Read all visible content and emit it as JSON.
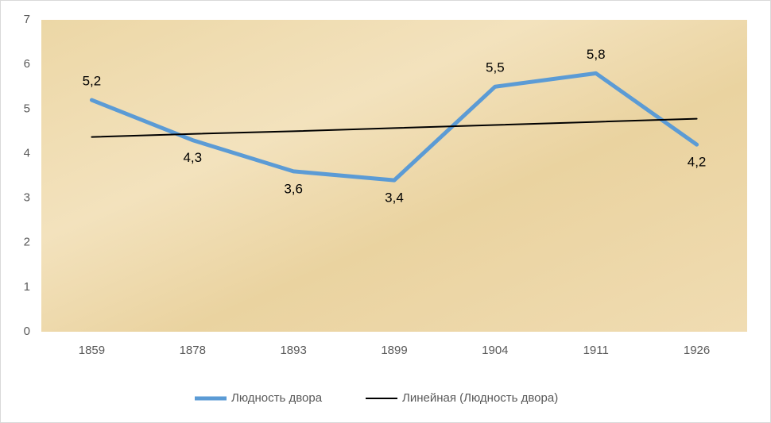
{
  "chart_data": {
    "type": "line",
    "categories": [
      "1859",
      "1878",
      "1893",
      "1899",
      "1904",
      "1911",
      "1926"
    ],
    "series": [
      {
        "name": "Людность двора",
        "color": "#5b9bd5",
        "values": [
          5.2,
          4.3,
          3.6,
          3.4,
          5.5,
          5.8,
          4.2
        ],
        "value_labels": [
          "5,2",
          "4,3",
          "3,6",
          "3,4",
          "5,5",
          "5,8",
          "4,2"
        ]
      },
      {
        "name": "Линейная (Людность двора)",
        "color": "#000000",
        "values": [
          4.37,
          4.44,
          4.5,
          4.57,
          4.64,
          4.71,
          4.78
        ]
      }
    ],
    "ylim": [
      0,
      7
    ],
    "yticks": [
      0,
      1,
      2,
      3,
      4,
      5,
      6,
      7
    ],
    "grid": false,
    "legend": "bottom"
  }
}
